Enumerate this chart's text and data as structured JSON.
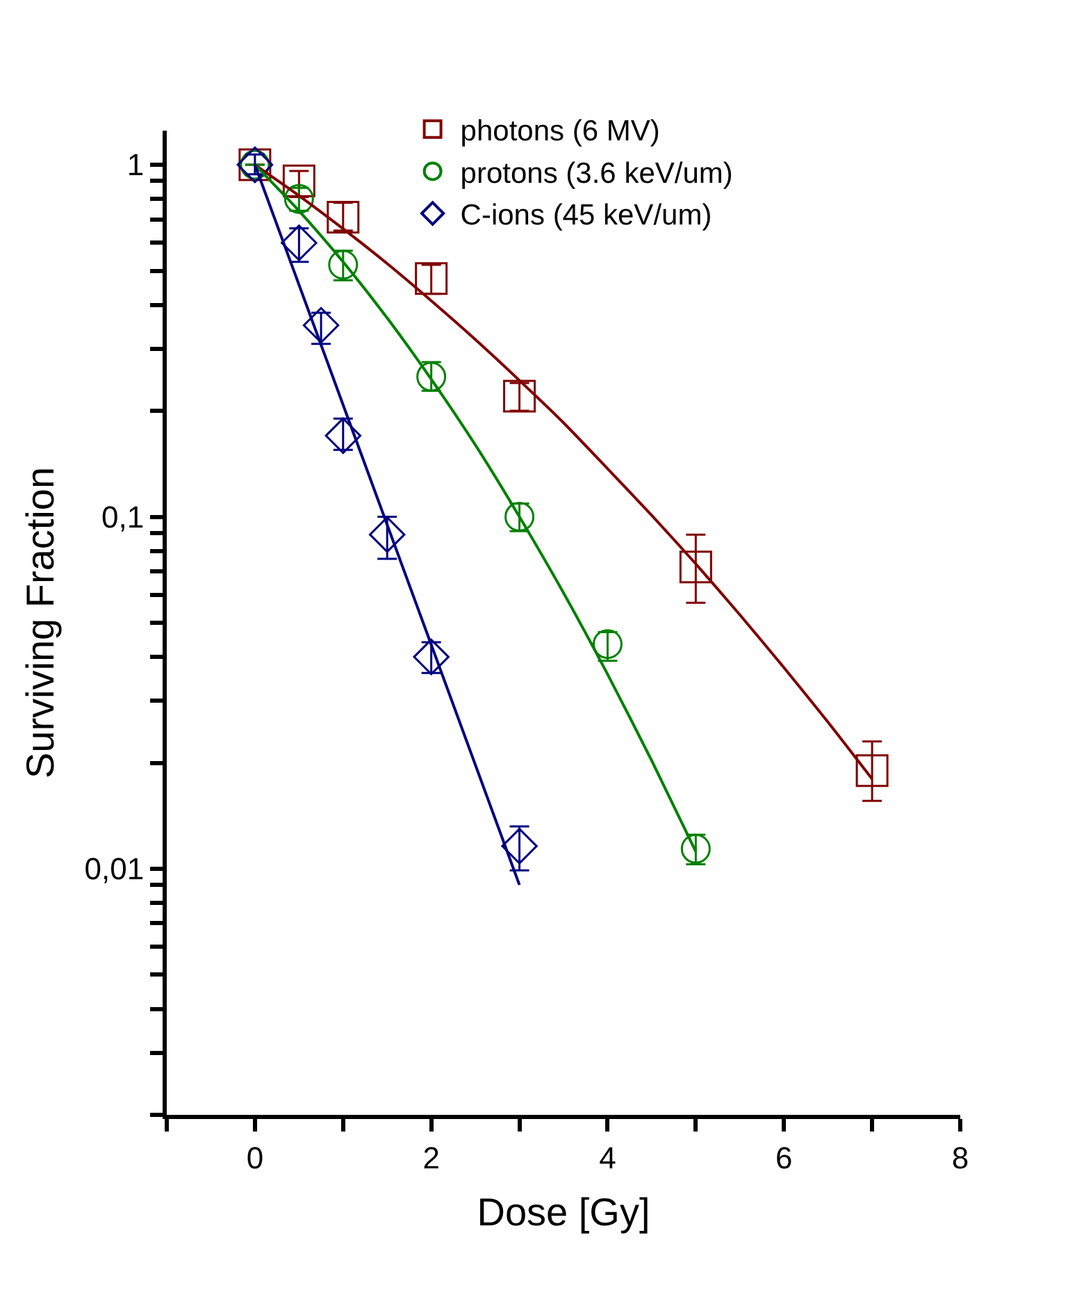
{
  "chart_data": {
    "type": "scatter",
    "xlabel": "Dose [Gy]",
    "ylabel": "Surviving Fraction",
    "log": "y",
    "grid": false,
    "legend": "top right",
    "xlim": [
      -1,
      8
    ],
    "xticks": [
      {
        "value": -1,
        "label": null
      },
      0,
      {
        "value": 1,
        "label": null
      },
      2,
      {
        "value": 3,
        "label": null
      },
      4,
      {
        "value": 5,
        "label": null
      },
      6,
      {
        "value": 7,
        "label": null
      },
      8
    ],
    "ylim": [
      0.002,
      1.25
    ],
    "yticks": [
      {
        "value": 0.002,
        "label": null
      },
      {
        "value": 0.003,
        "label": null
      },
      {
        "value": 0.004,
        "label": null
      },
      {
        "value": 0.005,
        "label": null
      },
      {
        "value": 0.006,
        "label": null
      },
      {
        "value": 0.007,
        "label": null
      },
      {
        "value": 0.008,
        "label": null
      },
      {
        "value": 0.009,
        "label": null
      },
      {
        "value": 0.01,
        "label": "0,01"
      },
      {
        "value": 0.02,
        "label": null
      },
      {
        "value": 0.03,
        "label": null
      },
      {
        "value": 0.04,
        "label": null
      },
      {
        "value": 0.05,
        "label": null
      },
      {
        "value": 0.06,
        "label": null
      },
      {
        "value": 0.07,
        "label": null
      },
      {
        "value": 0.08,
        "label": null
      },
      {
        "value": 0.09,
        "label": null
      },
      {
        "value": 0.1,
        "label": "0,1"
      },
      {
        "value": 0.2,
        "label": null
      },
      {
        "value": 0.3,
        "label": null
      },
      {
        "value": 0.4,
        "label": null
      },
      {
        "value": 0.5,
        "label": null
      },
      {
        "value": 0.6,
        "label": null
      },
      {
        "value": 0.7,
        "label": null
      },
      {
        "value": 0.8,
        "label": null
      },
      {
        "value": 0.9,
        "label": null
      },
      1
    ],
    "series": [
      {
        "name": "photons (6 MV)",
        "marker": "square",
        "color": "#800000",
        "x": [
          0,
          0.5,
          1,
          2,
          3,
          5,
          7
        ],
        "values": [
          1,
          0.9,
          0.71,
          0.475,
          0.22,
          0.072,
          0.019
        ],
        "errors": [
          null,
          [
            0.81,
            0.96
          ],
          [
            0.65,
            0.78
          ],
          [
            0.43,
            0.52
          ],
          [
            0.2,
            0.24
          ],
          [
            0.057,
            0.089
          ],
          [
            0.0156,
            0.023
          ]
        ]
      },
      {
        "name": "protons (3.6 keV/um)",
        "marker": "circle",
        "color": "#008000",
        "x": [
          0,
          0.5,
          1,
          2,
          3,
          4,
          5
        ],
        "values": [
          1,
          0.8,
          0.52,
          0.25,
          0.1,
          0.0435,
          0.0114
        ],
        "errors": [
          null,
          [
            0.74,
            0.86
          ],
          [
            0.47,
            0.57
          ],
          [
            0.228,
            0.275
          ],
          [
            0.091,
            0.109
          ],
          [
            0.039,
            0.047
          ],
          [
            0.0103,
            0.0125
          ]
        ]
      },
      {
        "name": "C-ions (45 keV/um)",
        "marker": "diamond",
        "color": "#000080",
        "x": [
          0,
          0.5,
          0.75,
          1,
          1.5,
          2,
          3
        ],
        "values": [
          1,
          0.6,
          0.35,
          0.17,
          0.089,
          0.04,
          0.0116
        ],
        "errors": [
          [
            0.94,
            1.07
          ],
          [
            0.53,
            0.66
          ],
          [
            0.31,
            0.38
          ],
          [
            0.155,
            0.19
          ],
          [
            0.076,
            0.1
          ],
          [
            0.036,
            0.044
          ],
          [
            0.0099,
            0.0132
          ]
        ]
      },
      {
        "type": "line",
        "marker": "none",
        "line_style": "solid",
        "color": "#800000",
        "x": [
          0,
          0.5,
          1,
          1.5,
          2,
          2.5,
          3,
          3.5,
          4,
          4.5,
          5,
          5.5,
          6,
          6.5,
          7
        ],
        "values": [
          1,
          0.817,
          0.658,
          0.524,
          0.411,
          0.319,
          0.244,
          0.185,
          0.137,
          0.101,
          0.0735,
          0.0527,
          0.0373,
          0.0261,
          0.018
        ]
      },
      {
        "type": "line",
        "marker": "none",
        "line_style": "solid",
        "color": "#008000",
        "x": [
          0,
          0.5,
          1,
          1.5,
          2,
          2.5,
          3,
          3.5,
          4,
          4.5,
          5
        ],
        "values": [
          1,
          0.74,
          0.53,
          0.367,
          0.246,
          0.16,
          0.1,
          0.0608,
          0.0357,
          0.0203,
          0.0112
        ]
      },
      {
        "type": "line",
        "marker": "none",
        "line_style": "solid",
        "color": "#000080",
        "x": [
          0,
          1,
          2,
          3
        ],
        "values": [
          1,
          0.208,
          0.0433,
          0.009
        ]
      }
    ]
  }
}
